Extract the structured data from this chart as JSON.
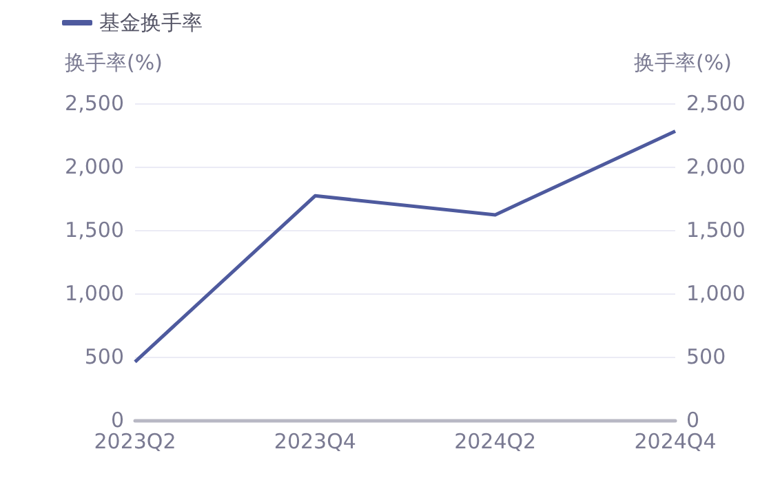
{
  "chart_data": {
    "type": "line",
    "categories": [
      "2023Q2",
      "2023Q4",
      "2024Q2",
      "2024Q4"
    ],
    "series": [
      {
        "name": "基金换手率",
        "color": "#4e5a9e",
        "values": [
          460,
          1770,
          1620,
          2280
        ]
      }
    ],
    "ylabel": "换手率(%)",
    "y2label": "换手率(%)",
    "ylim": [
      0,
      2500
    ],
    "yticks": [
      0,
      500,
      {
        "value": 1000,
        "label": "1,000"
      },
      {
        "value": 1500,
        "label": "1,500"
      },
      {
        "value": 2000,
        "label": "2,000"
      },
      {
        "value": 2500,
        "label": "2,500"
      }
    ],
    "y2lim": [
      0,
      2500
    ],
    "y2ticks": [
      0,
      500,
      {
        "value": 1000,
        "label": "1,000"
      },
      {
        "value": 1500,
        "label": "1,500"
      },
      {
        "value": 2000,
        "label": "2,000"
      },
      {
        "value": 2500,
        "label": "2,500"
      }
    ],
    "grid": "y",
    "legend": "top left",
    "marker": "none"
  }
}
